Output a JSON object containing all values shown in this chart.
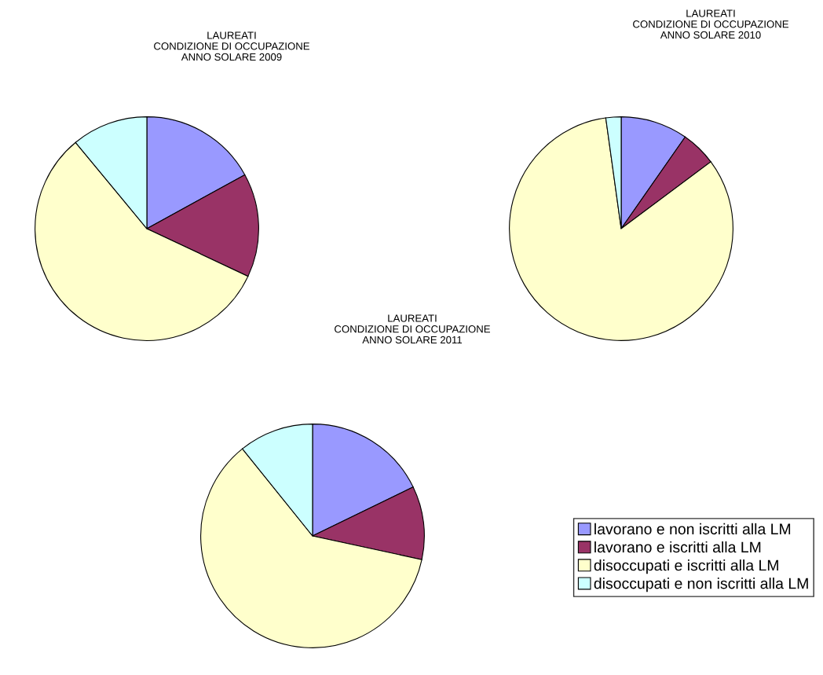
{
  "chart_data": [
    {
      "type": "pie",
      "title": "LAUREATI\nCONDIZIONE DI OCCUPAZIONE\nANNO SOLARE 2009",
      "categories": [
        "lavorano e non iscritti alla LM",
        "lavorano e iscritti alla LM",
        "disoccupati e iscritti alla LM",
        "disoccupati e non iscritti alla LM"
      ],
      "values": [
        17,
        15,
        57,
        11
      ],
      "colors": [
        "#9999ff",
        "#993366",
        "#ffffcc",
        "#ccffff"
      ],
      "legend": "bottom right"
    },
    {
      "type": "pie",
      "title": "LAUREATI\nCONDIZIONE DI OCCUPAZIONE\nANNO SOLARE 2010",
      "categories": [
        null,
        null,
        null,
        null
      ],
      "values": [
        9.7,
        5.1,
        83,
        2.2
      ],
      "colors": [
        "#9999ff",
        "#993366",
        "#ffffcc",
        "#ccffff"
      ]
    },
    {
      "type": "pie",
      "title": "LAUREATI\nCONDIZIONE DI OCCUPAZIONE\nANNO SOLARE 2011",
      "categories": [
        null,
        null,
        null,
        null
      ],
      "values": [
        17.8,
        10.6,
        60.8,
        10.8
      ],
      "colors": [
        "#9999ff",
        "#993366",
        "#ffffcc",
        "#ccffff"
      ]
    }
  ]
}
